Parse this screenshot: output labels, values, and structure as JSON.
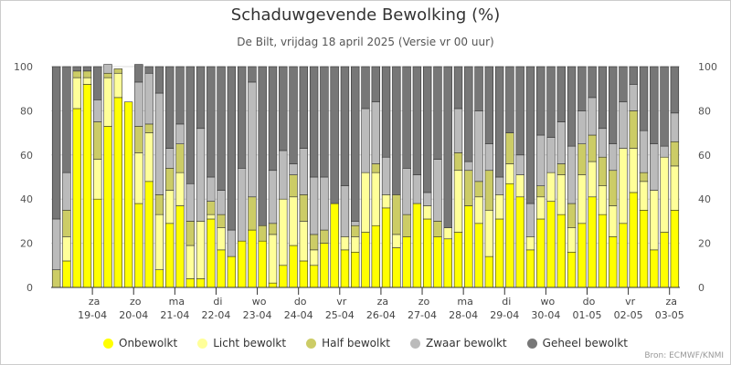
{
  "title": "Schaduwgevende Bewolking (%)",
  "subtitle": "De Bilt, vrijdag 18 april 2025 (Versie vr 00 uur)",
  "credit": "Bron: ECMWF/KNMI",
  "colors": {
    "onbewolkt": "#ffff00",
    "licht": "#ffff99",
    "half": "#cccc66",
    "zwaar": "#bbbbbb",
    "geheel": "#777777",
    "grid": "#dddddd",
    "axis": "#555555"
  },
  "chart_data": {
    "type": "bar",
    "stacked": true,
    "ylim": [
      0,
      100
    ],
    "yticks": [
      0,
      20,
      40,
      60,
      80,
      100
    ],
    "x_day_labels": [
      {
        "bar": 4,
        "weekday": "za",
        "date": "19-04"
      },
      {
        "bar": 8,
        "weekday": "zo",
        "date": "20-04"
      },
      {
        "bar": 12,
        "weekday": "ma",
        "date": "21-04"
      },
      {
        "bar": 16,
        "weekday": "di",
        "date": "22-04"
      },
      {
        "bar": 20,
        "weekday": "wo",
        "date": "23-04"
      },
      {
        "bar": 24,
        "weekday": "do",
        "date": "24-04"
      },
      {
        "bar": 28,
        "weekday": "vr",
        "date": "25-04"
      },
      {
        "bar": 32,
        "weekday": "za",
        "date": "26-04"
      },
      {
        "bar": 36,
        "weekday": "zo",
        "date": "27-04"
      },
      {
        "bar": 40,
        "weekday": "ma",
        "date": "28-04"
      },
      {
        "bar": 44,
        "weekday": "di",
        "date": "29-04"
      },
      {
        "bar": 48,
        "weekday": "wo",
        "date": "30-04"
      },
      {
        "bar": 52,
        "weekday": "do",
        "date": "01-05"
      },
      {
        "bar": 56,
        "weekday": "vr",
        "date": "02-05"
      },
      {
        "bar": 60,
        "weekday": "za",
        "date": "03-05"
      }
    ],
    "series": [
      {
        "key": "onbewolkt",
        "name": "Onbewolkt",
        "values": [
          0,
          12,
          81,
          92,
          40,
          73,
          86,
          84,
          38,
          48,
          8,
          29,
          37,
          4,
          4,
          31,
          17,
          14,
          21,
          26,
          21,
          2,
          10,
          19,
          12,
          10,
          20,
          38,
          17,
          16,
          25,
          28,
          36,
          18,
          23,
          38,
          31,
          23,
          22,
          25,
          37,
          29,
          14,
          31,
          47,
          41,
          17,
          31,
          39,
          33,
          16,
          29,
          41,
          33,
          23,
          29,
          43,
          35,
          17,
          25,
          35
        ]
      },
      {
        "key": "licht",
        "name": "Licht bewolkt",
        "values": [
          0,
          11,
          14,
          3,
          18,
          22,
          11,
          0,
          23,
          22,
          25,
          15,
          15,
          15,
          26,
          2,
          10,
          0,
          0,
          0,
          0,
          22,
          30,
          22,
          18,
          7,
          0,
          0,
          6,
          7,
          27,
          24,
          6,
          6,
          0,
          0,
          6,
          0,
          5,
          28,
          0,
          12,
          21,
          11,
          9,
          10,
          6,
          10,
          13,
          18,
          11,
          22,
          16,
          13,
          14,
          34,
          20,
          13,
          27,
          34,
          20
        ]
      },
      {
        "key": "half",
        "name": "Half bewolkt",
        "values": [
          8,
          12,
          3,
          3,
          17,
          2,
          2,
          0,
          12,
          4,
          9,
          10,
          13,
          11,
          0,
          6,
          6,
          0,
          0,
          15,
          7,
          5,
          0,
          10,
          12,
          7,
          6,
          0,
          0,
          5,
          0,
          4,
          0,
          18,
          10,
          0,
          0,
          7,
          0,
          8,
          16,
          7,
          18,
          0,
          14,
          0,
          0,
          5,
          0,
          5,
          11,
          14,
          12,
          13,
          16,
          0,
          17,
          4,
          0,
          0,
          11
        ]
      },
      {
        "key": "zwaar",
        "name": "Zwaar bewolkt",
        "values": [
          23,
          17,
          0,
          0,
          10,
          4,
          0,
          0,
          20,
          23,
          46,
          9,
          9,
          17,
          42,
          11,
          11,
          12,
          33,
          52,
          0,
          24,
          22,
          5,
          21,
          26,
          24,
          0,
          23,
          2,
          29,
          28,
          17,
          0,
          21,
          13,
          6,
          28,
          0,
          20,
          4,
          32,
          12,
          8,
          0,
          9,
          15,
          23,
          16,
          19,
          26,
          15,
          17,
          13,
          12,
          21,
          12,
          19,
          21,
          5,
          13
        ]
      },
      {
        "key": "geheel",
        "name": "Geheel bewolkt",
        "values": [
          69,
          48,
          2,
          2,
          15,
          0,
          0,
          0,
          8,
          3,
          12,
          37,
          26,
          53,
          28,
          50,
          56,
          74,
          46,
          7,
          72,
          47,
          38,
          44,
          37,
          50,
          50,
          62,
          54,
          70,
          19,
          16,
          41,
          58,
          46,
          49,
          57,
          42,
          73,
          19,
          43,
          20,
          35,
          50,
          30,
          40,
          62,
          31,
          32,
          25,
          36,
          20,
          14,
          28,
          35,
          16,
          8,
          29,
          35,
          36,
          21
        ]
      }
    ]
  }
}
